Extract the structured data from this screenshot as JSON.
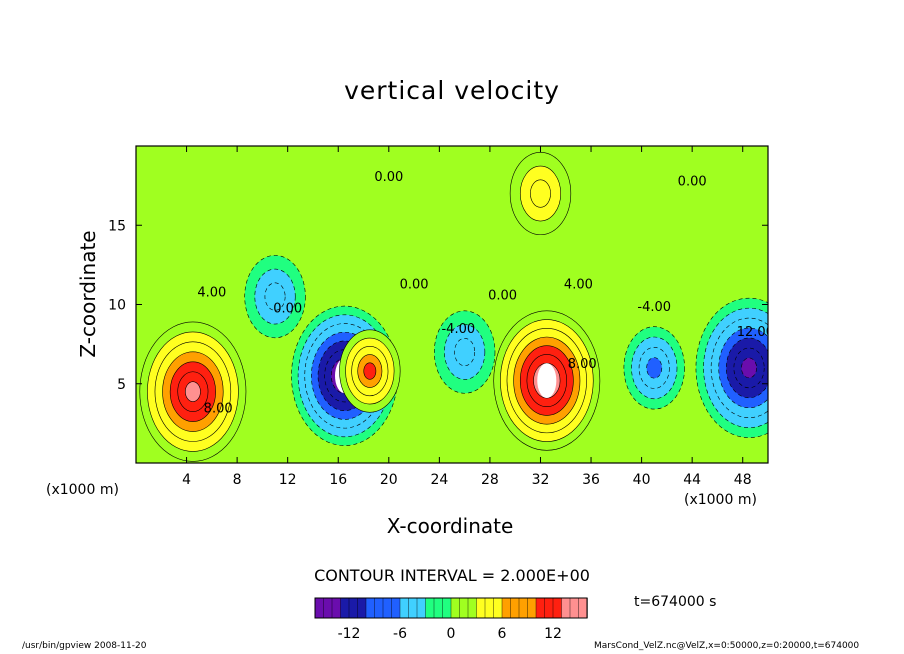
{
  "chart_data": {
    "type": "heatmap",
    "title": "vertical velocity",
    "xlabel": "X-coordinate",
    "ylabel": "Z-coordinate",
    "x_unit_label": "(x1000 m)",
    "xlim": [
      0,
      50
    ],
    "ylim": [
      0,
      20
    ],
    "x_ticks": [
      4,
      8,
      12,
      16,
      20,
      24,
      28,
      32,
      36,
      40,
      44,
      48
    ],
    "y_ticks": [
      5,
      10,
      15
    ],
    "contour_labels": [
      "4.00",
      "8.00",
      "0.00",
      "-4.00",
      "4.00",
      "8.00",
      "0.00",
      "-4.00",
      "0.00",
      "0.00",
      "0.00",
      "12.00"
    ],
    "colorbar": {
      "range": [
        -16,
        16
      ],
      "ticks": [
        -12,
        -6,
        0,
        6,
        12
      ],
      "colors": [
        "#6a0dad",
        "#1a1aa8",
        "#2060ff",
        "#40d0ff",
        "#20ff80",
        "#a0ff20",
        "#ffff20",
        "#ffa000",
        "#ff2010",
        "#ff9090"
      ]
    },
    "features": [
      {
        "x": 4.5,
        "z": 4.5,
        "sign": "up",
        "peak": 14
      },
      {
        "x": 16.5,
        "z": 5.5,
        "sign": "down",
        "peak": -16
      },
      {
        "x": 18.5,
        "z": 5.8,
        "sign": "up",
        "peak": 10
      },
      {
        "x": 32.5,
        "z": 5.2,
        "sign": "up",
        "peak": 16
      },
      {
        "x": 48.5,
        "z": 6.0,
        "sign": "down",
        "peak": -14
      },
      {
        "x": 11.0,
        "z": 10.5,
        "sign": "down",
        "peak": -6
      },
      {
        "x": 26.0,
        "z": 7.0,
        "sign": "down",
        "peak": -6
      },
      {
        "x": 41.0,
        "z": 6.0,
        "sign": "down",
        "peak": -8
      },
      {
        "x": 32.0,
        "z": 17.0,
        "sign": "up",
        "peak": 5
      }
    ]
  },
  "contour_interval": "CONTOUR INTERVAL = 2.000E+00",
  "time_label": "t=674000 s",
  "footer_left": "/usr/bin/gpview  2008-11-20",
  "footer_right": "MarsCond_VelZ.nc@VelZ,x=0:50000,z=0:20000,t=674000"
}
